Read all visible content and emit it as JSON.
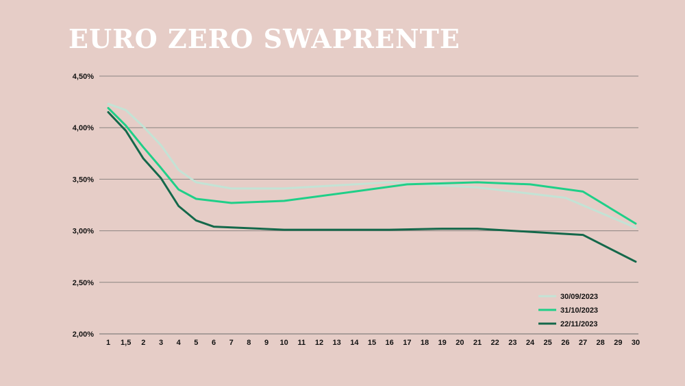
{
  "title": "EURO ZERO SWAPRENTE",
  "chart_data": {
    "type": "line",
    "title": "EURO ZERO SWAPRENTE",
    "xlabel": "",
    "ylabel": "",
    "categories": [
      "1",
      "1,5",
      "2",
      "3",
      "4",
      "5",
      "6",
      "7",
      "8",
      "9",
      "10",
      "11",
      "12",
      "13",
      "14",
      "15",
      "16",
      "17",
      "18",
      "19",
      "20",
      "21",
      "22",
      "23",
      "24",
      "25",
      "26",
      "27",
      "28",
      "29",
      "30"
    ],
    "ylim": [
      2.0,
      4.5
    ],
    "yticks": [
      {
        "value": 4.5,
        "label": "4,50%"
      },
      {
        "value": 4.0,
        "label": "4,00%"
      },
      {
        "value": 3.5,
        "label": "3,50%"
      },
      {
        "value": 3.0,
        "label": "3,00%"
      },
      {
        "value": 2.5,
        "label": "2,50%"
      },
      {
        "value": 2.0,
        "label": "2,00%"
      }
    ],
    "grid": true,
    "legend_position": "bottom-right",
    "series": [
      {
        "name": "30/09/2023",
        "color": "#c3e3d5",
        "points": [
          {
            "x": 1,
            "y": 4.23
          },
          {
            "x": 2,
            "y": 4.17
          },
          {
            "x": 3,
            "y": 4.01
          },
          {
            "x": 4,
            "y": 3.83
          },
          {
            "x": 5,
            "y": 3.59
          },
          {
            "x": 6,
            "y": 3.47
          },
          {
            "x": 7,
            "y": 3.44
          },
          {
            "x": 8,
            "y": 3.41
          },
          {
            "x": 11,
            "y": 3.41
          },
          {
            "x": 17,
            "y": 3.47
          },
          {
            "x": 18,
            "y": 3.46
          },
          {
            "x": 22,
            "y": 3.42
          },
          {
            "x": 27,
            "y": 3.32
          },
          {
            "x": 31,
            "y": 3.03
          }
        ]
      },
      {
        "name": "31/10/2023",
        "color": "#1fcf88",
        "points": [
          {
            "x": 1,
            "y": 4.19
          },
          {
            "x": 2,
            "y": 4.02
          },
          {
            "x": 3,
            "y": 3.81
          },
          {
            "x": 4,
            "y": 3.61
          },
          {
            "x": 5,
            "y": 3.4
          },
          {
            "x": 6,
            "y": 3.31
          },
          {
            "x": 8,
            "y": 3.27
          },
          {
            "x": 11,
            "y": 3.29
          },
          {
            "x": 15,
            "y": 3.38
          },
          {
            "x": 18,
            "y": 3.45
          },
          {
            "x": 22,
            "y": 3.47
          },
          {
            "x": 25,
            "y": 3.45
          },
          {
            "x": 28,
            "y": 3.38
          },
          {
            "x": 31,
            "y": 3.07
          }
        ]
      },
      {
        "name": "22/11/2023",
        "color": "#14684a",
        "points": [
          {
            "x": 1,
            "y": 4.15
          },
          {
            "x": 2,
            "y": 3.97
          },
          {
            "x": 3,
            "y": 3.7
          },
          {
            "x": 4,
            "y": 3.51
          },
          {
            "x": 5,
            "y": 3.24
          },
          {
            "x": 6,
            "y": 3.1
          },
          {
            "x": 7,
            "y": 3.04
          },
          {
            "x": 11,
            "y": 3.01
          },
          {
            "x": 17,
            "y": 3.01
          },
          {
            "x": 20,
            "y": 3.02
          },
          {
            "x": 22,
            "y": 3.02
          },
          {
            "x": 25,
            "y": 2.99
          },
          {
            "x": 28,
            "y": 2.96
          },
          {
            "x": 31,
            "y": 2.7
          }
        ]
      }
    ]
  }
}
